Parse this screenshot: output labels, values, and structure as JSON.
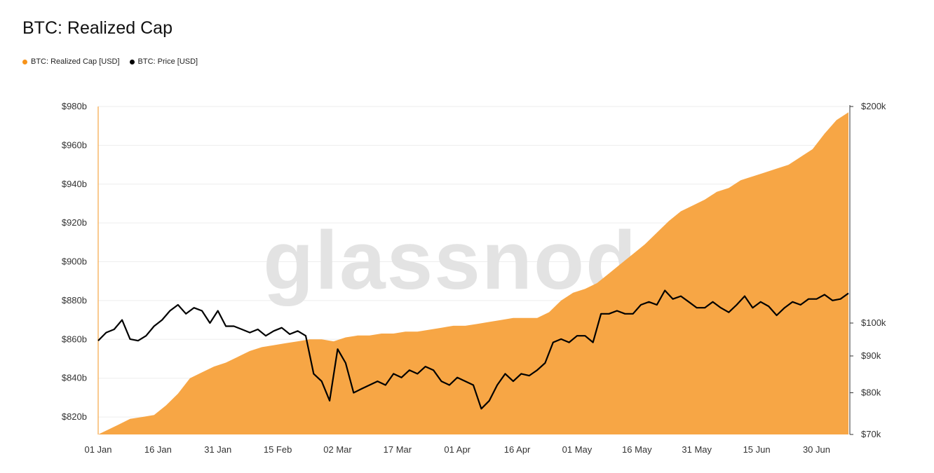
{
  "chart_data": {
    "type": "area",
    "title": "BTC: Realized Cap",
    "watermark": "glassnode",
    "legend": {
      "placement": "top-left",
      "entries": [
        {
          "label": "BTC: Realized Cap [USD]",
          "color": "#f7931a"
        },
        {
          "label": "BTC: Price [USD]",
          "color": "#000000"
        }
      ]
    },
    "x_ticks": [
      "01 Jan",
      "16 Jan",
      "31 Jan",
      "15 Feb",
      "02 Mar",
      "17 Mar",
      "01 Apr",
      "16 Apr",
      "01 May",
      "16 May",
      "31 May",
      "15 Jun",
      "30 Jun"
    ],
    "y_left": {
      "ticks": [
        "$820b",
        "$840b",
        "$860b",
        "$880b",
        "$900b",
        "$920b",
        "$940b",
        "$960b",
        "$980b"
      ],
      "range": [
        811,
        980
      ],
      "unit": "billion USD"
    },
    "y_right": {
      "ticks": [
        "$70k",
        "$80k",
        "$90k",
        "$100k",
        "$200k"
      ],
      "scale": "log",
      "range": [
        70,
        200
      ],
      "unit": "thousand USD"
    },
    "grid": true,
    "series": [
      {
        "name": "BTC: Realized Cap [USD]",
        "type": "area",
        "color": "#f7a645",
        "axis": "left",
        "x": [
          "2025-01-01",
          "2025-01-03",
          "2025-01-06",
          "2025-01-09",
          "2025-01-12",
          "2025-01-15",
          "2025-01-18",
          "2025-01-21",
          "2025-01-24",
          "2025-01-27",
          "2025-01-30",
          "2025-02-02",
          "2025-02-05",
          "2025-02-08",
          "2025-02-11",
          "2025-02-14",
          "2025-02-17",
          "2025-02-20",
          "2025-02-23",
          "2025-02-26",
          "2025-03-01",
          "2025-03-04",
          "2025-03-07",
          "2025-03-10",
          "2025-03-13",
          "2025-03-16",
          "2025-03-19",
          "2025-03-22",
          "2025-03-25",
          "2025-03-28",
          "2025-03-31",
          "2025-04-03",
          "2025-04-06",
          "2025-04-09",
          "2025-04-12",
          "2025-04-15",
          "2025-04-18",
          "2025-04-21",
          "2025-04-24",
          "2025-04-27",
          "2025-04-30",
          "2025-05-03",
          "2025-05-06",
          "2025-05-09",
          "2025-05-12",
          "2025-05-15",
          "2025-05-18",
          "2025-05-21",
          "2025-05-24",
          "2025-05-27",
          "2025-05-30",
          "2025-06-02",
          "2025-06-05",
          "2025-06-08",
          "2025-06-11",
          "2025-06-14",
          "2025-06-17",
          "2025-06-20",
          "2025-06-23",
          "2025-06-26",
          "2025-06-29",
          "2025-07-02",
          "2025-07-05",
          "2025-07-08"
        ],
        "values": [
          811,
          813,
          816,
          819,
          820,
          821,
          826,
          832,
          840,
          843,
          846,
          848,
          851,
          854,
          856,
          857,
          858,
          859,
          860,
          860,
          859,
          861,
          862,
          862,
          863,
          863,
          864,
          864,
          865,
          866,
          867,
          867,
          868,
          869,
          870,
          871,
          871,
          871,
          874,
          880,
          884,
          886,
          889,
          894,
          899,
          904,
          909,
          915,
          921,
          926,
          929,
          932,
          936,
          938,
          942,
          944,
          946,
          948,
          950,
          954,
          958,
          966,
          973,
          977
        ]
      },
      {
        "name": "BTC: Price [USD]",
        "type": "line",
        "color": "#000000",
        "axis": "right",
        "unit": "thousand USD",
        "x": [
          "2025-01-01",
          "2025-01-03",
          "2025-01-05",
          "2025-01-07",
          "2025-01-09",
          "2025-01-11",
          "2025-01-13",
          "2025-01-15",
          "2025-01-17",
          "2025-01-19",
          "2025-01-21",
          "2025-01-23",
          "2025-01-25",
          "2025-01-27",
          "2025-01-29",
          "2025-01-31",
          "2025-02-02",
          "2025-02-04",
          "2025-02-06",
          "2025-02-08",
          "2025-02-10",
          "2025-02-12",
          "2025-02-14",
          "2025-02-16",
          "2025-02-18",
          "2025-02-20",
          "2025-02-22",
          "2025-02-24",
          "2025-02-26",
          "2025-02-28",
          "2025-03-02",
          "2025-03-04",
          "2025-03-06",
          "2025-03-08",
          "2025-03-10",
          "2025-03-12",
          "2025-03-14",
          "2025-03-16",
          "2025-03-18",
          "2025-03-20",
          "2025-03-22",
          "2025-03-24",
          "2025-03-26",
          "2025-03-28",
          "2025-03-30",
          "2025-04-01",
          "2025-04-03",
          "2025-04-05",
          "2025-04-07",
          "2025-04-09",
          "2025-04-11",
          "2025-04-13",
          "2025-04-15",
          "2025-04-17",
          "2025-04-19",
          "2025-04-21",
          "2025-04-23",
          "2025-04-25",
          "2025-04-27",
          "2025-04-29",
          "2025-05-01",
          "2025-05-03",
          "2025-05-05",
          "2025-05-07",
          "2025-05-09",
          "2025-05-11",
          "2025-05-13",
          "2025-05-15",
          "2025-05-17",
          "2025-05-19",
          "2025-05-21",
          "2025-05-23",
          "2025-05-25",
          "2025-05-27",
          "2025-05-29",
          "2025-05-31",
          "2025-06-02",
          "2025-06-04",
          "2025-06-06",
          "2025-06-08",
          "2025-06-10",
          "2025-06-12",
          "2025-06-14",
          "2025-06-16",
          "2025-06-18",
          "2025-06-20",
          "2025-06-22",
          "2025-06-24",
          "2025-06-26",
          "2025-06-28",
          "2025-06-30",
          "2025-07-02",
          "2025-07-04",
          "2025-07-06",
          "2025-07-08"
        ],
        "values": [
          94.5,
          97,
          98,
          101,
          95,
          94.5,
          96,
          99,
          101,
          104,
          106,
          103,
          105,
          104,
          100,
          104,
          99,
          99,
          98,
          97,
          98,
          96,
          97.5,
          98.5,
          96.5,
          97.5,
          96,
          85,
          83,
          78,
          92,
          88,
          80,
          81,
          82,
          83,
          82,
          85,
          84,
          86,
          85,
          87,
          86,
          83,
          82,
          84,
          83,
          82,
          76,
          78,
          82,
          85,
          83,
          85,
          84.5,
          86,
          88,
          94,
          95,
          94,
          96,
          96,
          94,
          103,
          103,
          104,
          103,
          103,
          106,
          107,
          106,
          111,
          108,
          109,
          107,
          105,
          105,
          107,
          105,
          103.5,
          106,
          109,
          105,
          107,
          105.5,
          102.5,
          105,
          107,
          106,
          108,
          108,
          109.5,
          107.5,
          108,
          110
        ]
      }
    ]
  }
}
